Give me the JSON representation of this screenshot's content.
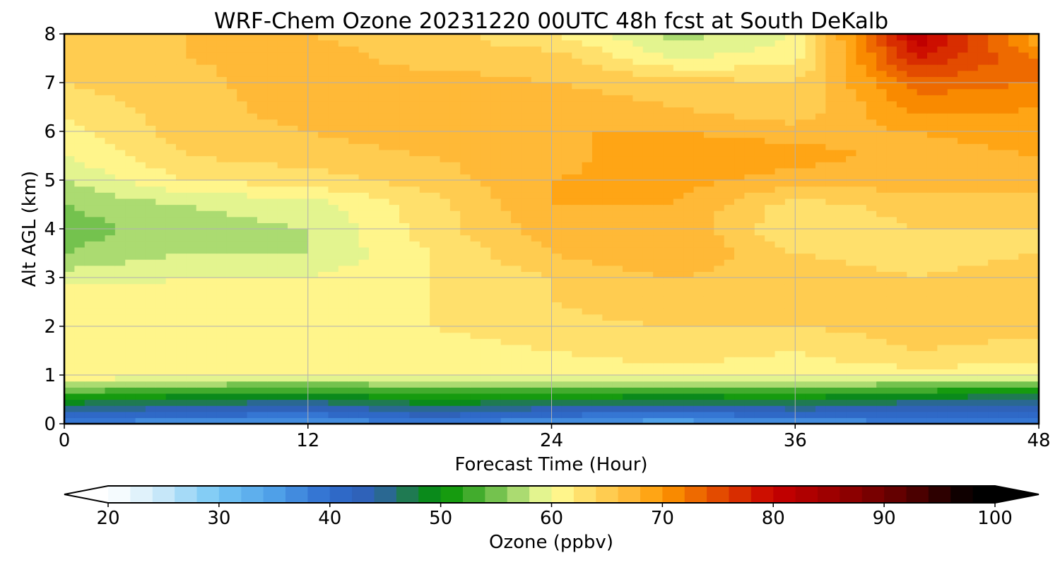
{
  "chart_data": {
    "type": "heatmap",
    "title": "WRF-Chem Ozone  20231220 00UTC 48h fcst at South DeKalb",
    "xlabel": "Forecast Time (Hour)",
    "ylabel": "Alt AGL (km)",
    "xlim": [
      0,
      48
    ],
    "ylim": [
      0,
      8
    ],
    "x_ticks": [
      0,
      12,
      24,
      36,
      48
    ],
    "y_ticks": [
      0,
      1,
      2,
      3,
      4,
      5,
      6,
      7,
      8
    ],
    "grid": true,
    "grid_x": [
      0,
      6,
      12,
      18,
      24,
      30,
      36,
      42,
      48
    ],
    "grid_y": [
      0,
      0.5,
      1,
      1.5,
      2,
      2.5,
      3,
      3.5,
      4,
      4.5,
      5,
      5.5,
      6,
      6.5,
      7,
      7.5,
      8
    ],
    "values": [
      [
        37,
        36,
        35,
        38,
        35,
        34,
        36,
        37,
        38
      ],
      [
        50,
        48,
        47,
        50,
        49,
        48,
        49,
        47,
        45
      ],
      [
        62,
        61,
        61,
        60,
        61,
        61,
        61,
        61,
        61
      ],
      [
        61,
        62,
        61,
        61,
        62,
        63,
        62,
        64,
        63
      ],
      [
        62,
        61,
        61,
        62,
        63,
        64,
        64,
        65,
        65
      ],
      [
        62,
        61,
        62,
        62,
        64,
        66,
        66,
        66,
        66
      ],
      [
        59,
        60,
        60,
        62,
        64,
        66,
        65,
        64,
        65
      ],
      [
        56,
        58,
        58,
        62,
        66,
        68,
        64,
        63,
        64
      ],
      [
        55,
        57,
        58,
        63,
        67,
        68,
        62,
        64,
        64
      ],
      [
        56,
        58,
        59,
        63,
        68,
        68,
        63,
        65,
        65
      ],
      [
        58,
        62,
        63,
        65,
        68,
        69,
        67,
        67,
        67
      ],
      [
        60,
        64,
        65,
        66,
        67,
        70,
        69,
        67,
        68
      ],
      [
        61,
        65,
        66,
        67,
        68,
        68,
        67,
        68,
        69
      ],
      [
        63,
        65,
        67,
        67,
        67,
        66,
        64,
        71,
        70
      ],
      [
        64,
        65,
        68,
        67,
        66,
        65,
        64,
        73,
        72
      ],
      [
        65,
        66,
        67,
        65,
        65,
        60,
        61,
        78,
        72
      ],
      [
        64,
        66,
        66,
        65,
        62,
        57,
        60,
        82,
        68
      ]
    ],
    "colorbar": {
      "label": "Ozone  (ppbv)",
      "min": 20,
      "max": 100,
      "step": 2,
      "extend": "both",
      "ticks": [
        20,
        30,
        40,
        50,
        60,
        70,
        80,
        90,
        100
      ],
      "stops": [
        [
          20,
          "#ffffff"
        ],
        [
          24,
          "#d6eefa"
        ],
        [
          30,
          "#74c6f4"
        ],
        [
          35,
          "#4fa0e8"
        ],
        [
          40,
          "#2f6cce"
        ],
        [
          44,
          "#2f5fb2"
        ],
        [
          47,
          "#1f7a52"
        ],
        [
          50,
          "#009200"
        ],
        [
          54,
          "#58b53c"
        ],
        [
          58,
          "#c7e883"
        ],
        [
          60,
          "#ffff9a"
        ],
        [
          64,
          "#ffd65c"
        ],
        [
          68,
          "#ffaf2a"
        ],
        [
          70,
          "#ff9a00"
        ],
        [
          74,
          "#e85a00"
        ],
        [
          80,
          "#c80000"
        ],
        [
          86,
          "#960000"
        ],
        [
          92,
          "#5a0000"
        ],
        [
          98,
          "#000000"
        ],
        [
          100,
          "#000000"
        ]
      ]
    }
  }
}
